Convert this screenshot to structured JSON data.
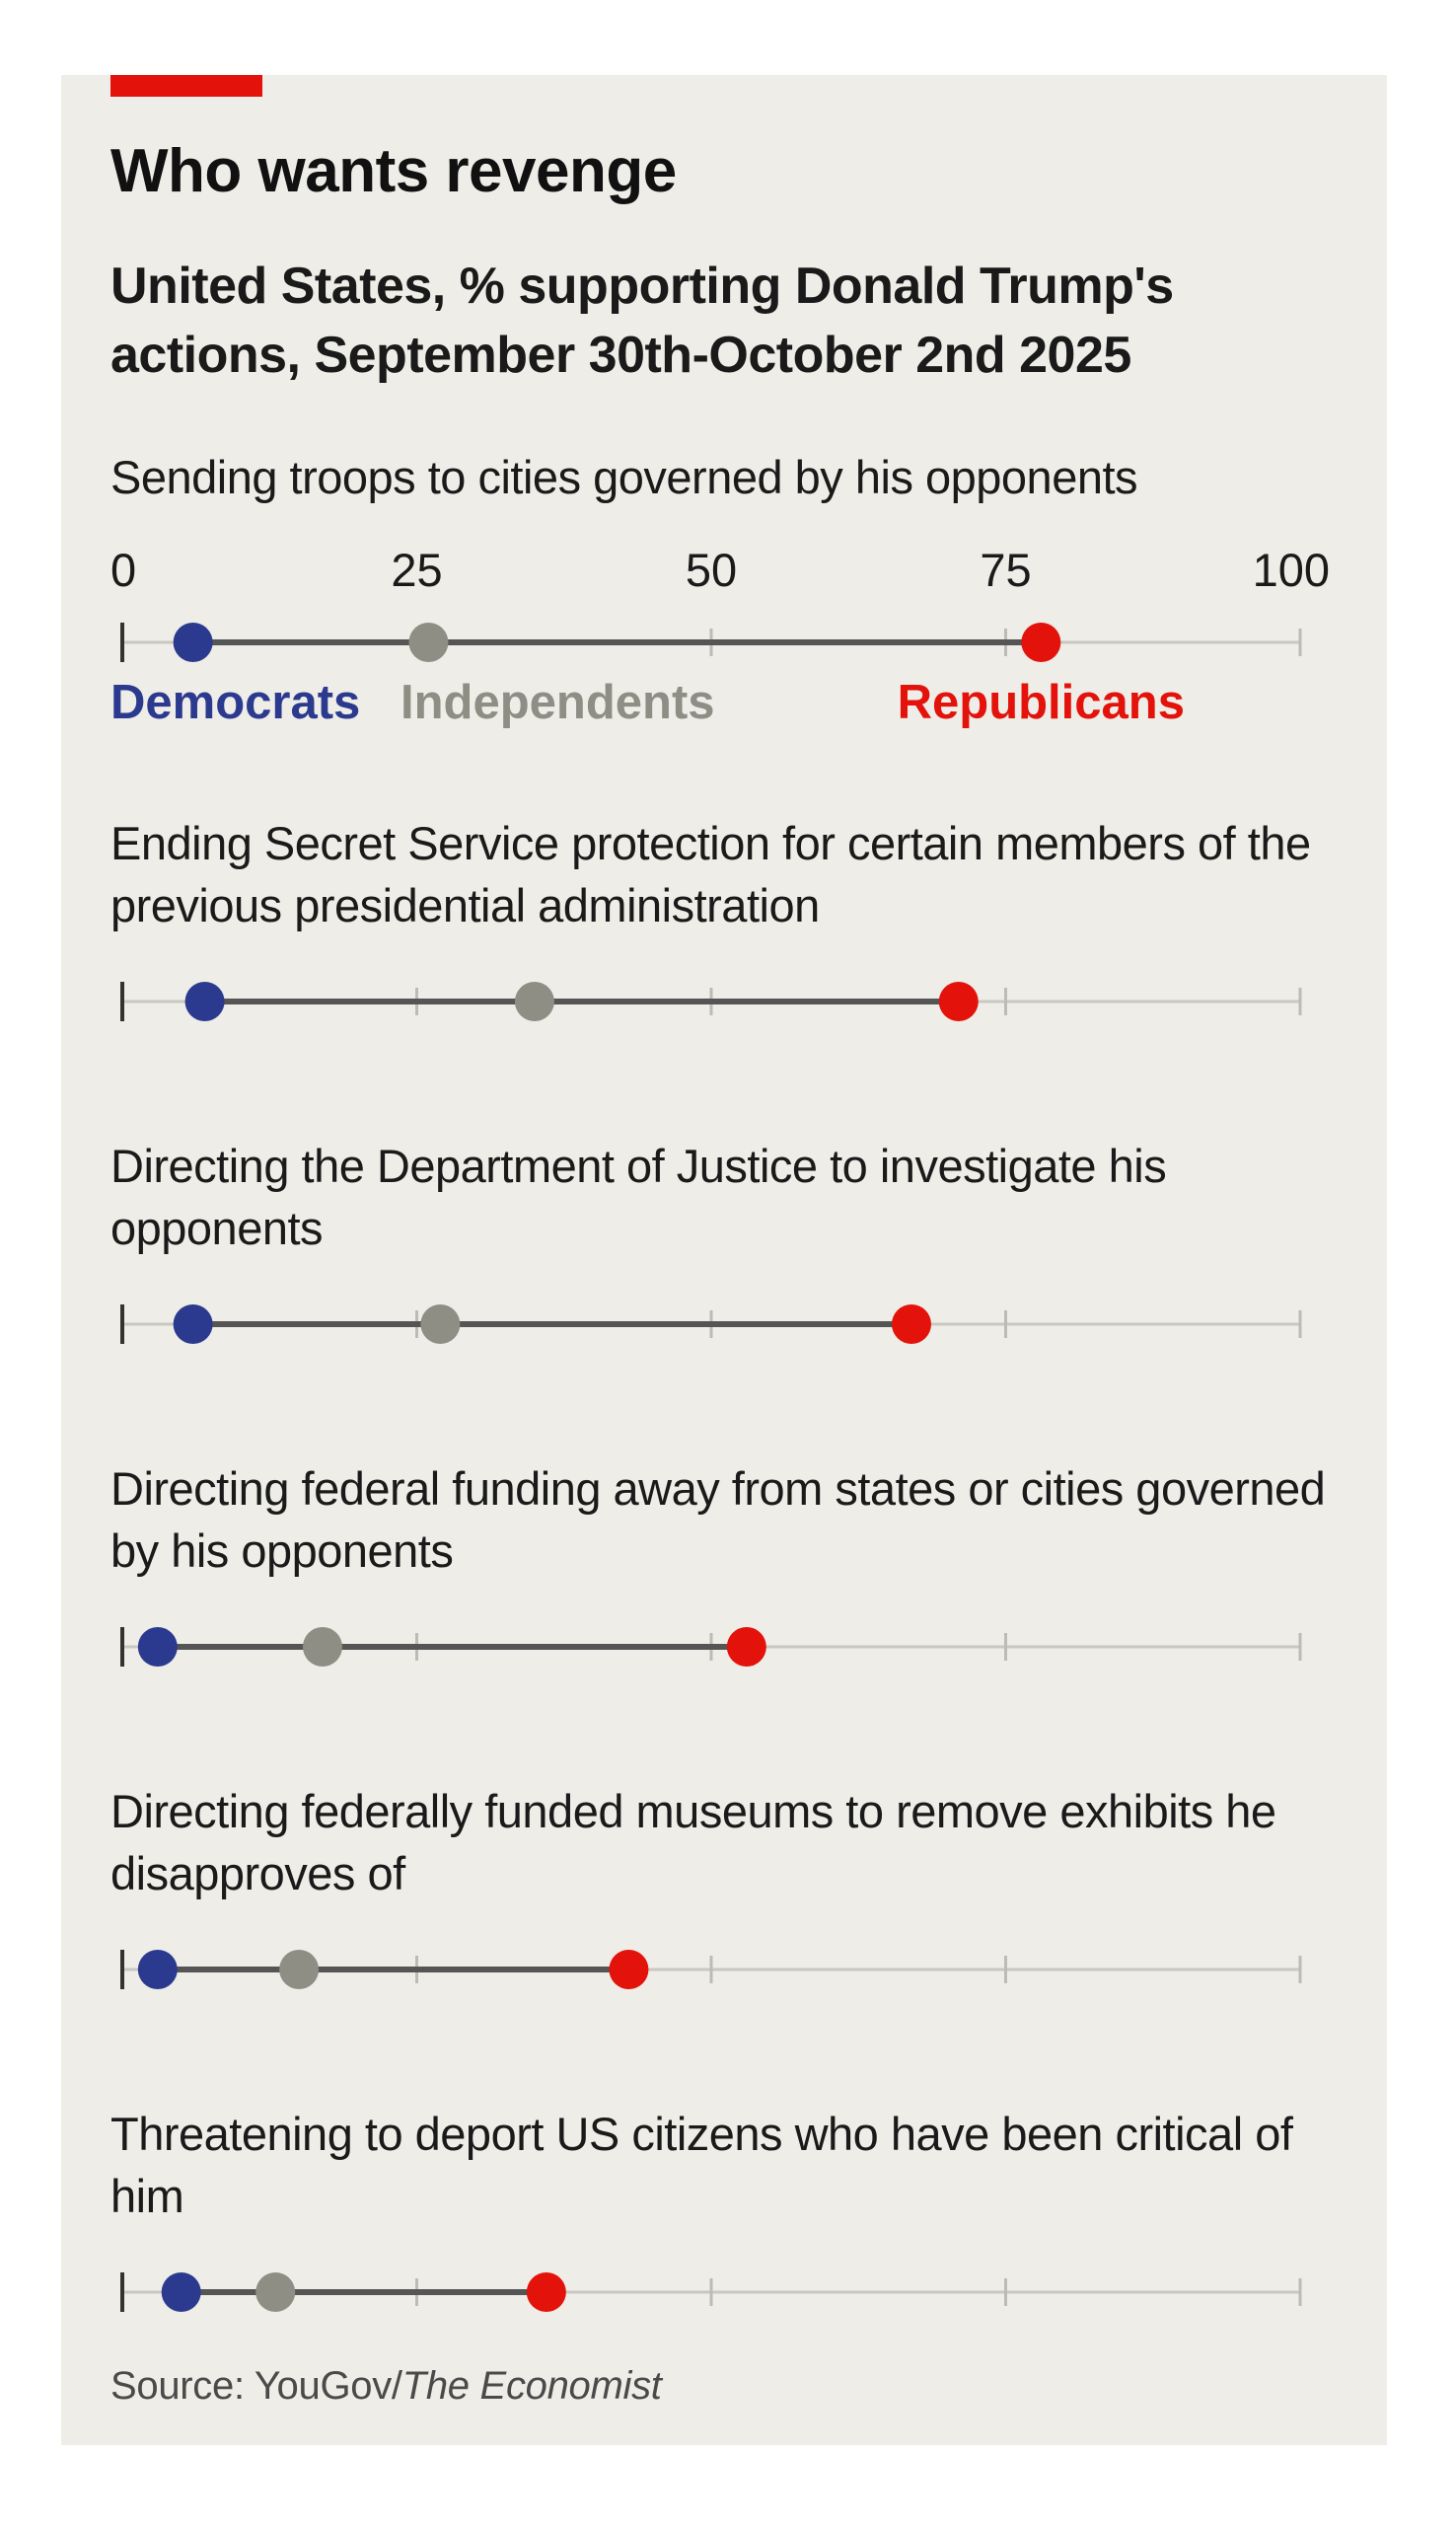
{
  "title": "Who wants revenge",
  "subtitle": "United States, % supporting Donald Trump's actions, September 30th-October 2nd 2025",
  "source_prefix": "Source: YouGov/",
  "source_italic": "The Economist",
  "colors": {
    "accent": "#e3120b",
    "background": "#eeede7",
    "Democrats": "#2b3a8f",
    "Independents": "#8e8e84",
    "Republicans": "#e3120b"
  },
  "chart_data": {
    "type": "dot-range",
    "xlim": [
      0,
      100
    ],
    "ticks": [
      "0",
      "25",
      "50",
      "75",
      "100"
    ],
    "grid": "vertical ticks at 0, 25, 50, 75, 100",
    "legend": "below first row",
    "series": [
      {
        "name": "Democrats",
        "color": "#2b3a8f"
      },
      {
        "name": "Independents",
        "color": "#8e8e84"
      },
      {
        "name": "Republicans",
        "color": "#e3120b"
      }
    ],
    "rows": [
      {
        "label": "Sending troops to cities governed by his opponents",
        "values": {
          "Democrats": 6,
          "Independents": 26,
          "Republicans": 78
        }
      },
      {
        "label": "Ending Secret Service protection for certain members of the previous presidential administration",
        "values": {
          "Democrats": 7,
          "Independents": 35,
          "Republicans": 71
        }
      },
      {
        "label": "Directing the Department of Justice to investigate his opponents",
        "values": {
          "Democrats": 6,
          "Independents": 27,
          "Republicans": 67
        }
      },
      {
        "label": "Directing federal funding away from states or cities governed by his opponents",
        "values": {
          "Democrats": 3,
          "Independents": 17,
          "Republicans": 53
        }
      },
      {
        "label": "Directing federally funded museums to remove exhibits he disapproves of",
        "values": {
          "Democrats": 3,
          "Independents": 15,
          "Republicans": 43
        }
      },
      {
        "label": "Threatening to deport US citizens who have been critical of him",
        "values": {
          "Democrats": 5,
          "Independents": 13,
          "Republicans": 36
        }
      }
    ]
  }
}
